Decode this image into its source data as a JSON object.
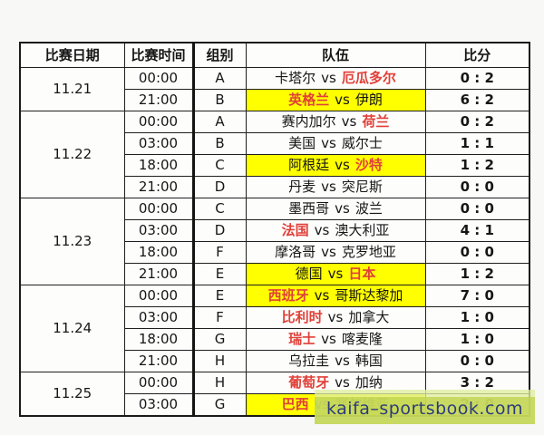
{
  "table": {
    "headers": {
      "date": "比赛日期",
      "time": "比赛时间",
      "group": "组别",
      "teams": "队伍",
      "score": "比分"
    },
    "vs_label": "vs",
    "day_groups": [
      {
        "date": "11.21",
        "matches": [
          {
            "time": "00:00",
            "group": "A",
            "home": "卡塔尔",
            "away": "厄瓜多尔",
            "red": "away",
            "highlight": false,
            "score": "0 : 2"
          },
          {
            "time": "21:00",
            "group": "B",
            "home": "英格兰",
            "away": "伊朗",
            "red": "home",
            "highlight": true,
            "score": "6 : 2"
          }
        ]
      },
      {
        "date": "11.22",
        "matches": [
          {
            "time": "00:00",
            "group": "A",
            "home": "赛内加尔",
            "away": "荷兰",
            "red": "away",
            "highlight": false,
            "score": "0 : 2"
          },
          {
            "time": "03:00",
            "group": "B",
            "home": "美国",
            "away": "威尔士",
            "red": null,
            "highlight": false,
            "score": "1 : 1"
          },
          {
            "time": "18:00",
            "group": "C",
            "home": "阿根廷",
            "away": "沙特",
            "red": "away",
            "highlight": true,
            "score": "1 : 2"
          },
          {
            "time": "21:00",
            "group": "D",
            "home": "丹麦",
            "away": "突尼斯",
            "red": null,
            "highlight": false,
            "score": "0 : 0"
          }
        ]
      },
      {
        "date": "11.23",
        "matches": [
          {
            "time": "00:00",
            "group": "C",
            "home": "墨西哥",
            "away": "波兰",
            "red": null,
            "highlight": false,
            "score": "0 : 0"
          },
          {
            "time": "03:00",
            "group": "D",
            "home": "法国",
            "away": "澳大利亚",
            "red": "home",
            "highlight": false,
            "score": "4 : 1"
          },
          {
            "time": "18:00",
            "group": "F",
            "home": "摩洛哥",
            "away": "克罗地亚",
            "red": null,
            "highlight": false,
            "score": "0 : 0"
          },
          {
            "time": "21:00",
            "group": "E",
            "home": "德国",
            "away": "日本",
            "red": "away",
            "highlight": true,
            "score": "1 : 2"
          }
        ]
      },
      {
        "date": "11.24",
        "matches": [
          {
            "time": "00:00",
            "group": "E",
            "home": "西班牙",
            "away": "哥斯达黎加",
            "red": "home",
            "highlight": true,
            "score": "7 : 0"
          },
          {
            "time": "03:00",
            "group": "F",
            "home": "比利时",
            "away": "加拿大",
            "red": "home",
            "highlight": false,
            "score": "1 : 0"
          },
          {
            "time": "18:00",
            "group": "G",
            "home": "瑞士",
            "away": "喀麦隆",
            "red": "home",
            "highlight": false,
            "score": "1 : 0"
          },
          {
            "time": "21:00",
            "group": "H",
            "home": "乌拉圭",
            "away": "韩国",
            "red": null,
            "highlight": false,
            "score": "0 : 0"
          }
        ]
      },
      {
        "date": "11.25",
        "matches": [
          {
            "time": "00:00",
            "group": "H",
            "home": "葡萄牙",
            "away": "加纳",
            "red": "home",
            "highlight": false,
            "score": "3 : 2"
          },
          {
            "time": "03:00",
            "group": "G",
            "home": "巴西",
            "away": "塞尔维亚",
            "red": "home",
            "highlight": true,
            "score": "2 : 0"
          }
        ]
      }
    ]
  },
  "watermark": {
    "text": "kaifa–sportsbook.com"
  },
  "colors": {
    "red_team": "#e04038",
    "highlight": "#ffff00",
    "banner_bg": "#c6d85c",
    "banner_text": "#2c3b7c",
    "border": "#1a1a1a"
  }
}
